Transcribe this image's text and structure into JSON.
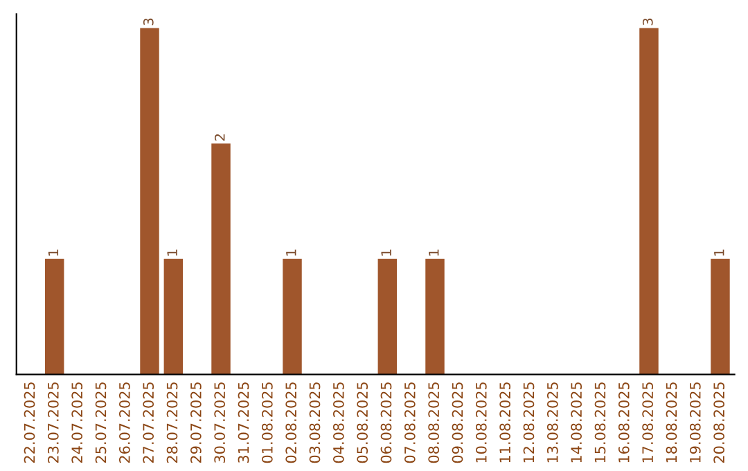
{
  "chart_data": {
    "type": "bar",
    "categories": [
      "22.07.2025",
      "23.07.2025",
      "24.07.2025",
      "25.07.2025",
      "26.07.2025",
      "27.07.2025",
      "28.07.2025",
      "29.07.2025",
      "30.07.2025",
      "31.07.2025",
      "01.08.2025",
      "02.08.2025",
      "03.08.2025",
      "04.08.2025",
      "05.08.2025",
      "06.08.2025",
      "07.08.2025",
      "08.08.2025",
      "09.08.2025",
      "10.08.2025",
      "11.08.2025",
      "12.08.2025",
      "13.08.2025",
      "14.08.2025",
      "15.08.2025",
      "16.08.2025",
      "17.08.2025",
      "18.08.2025",
      "19.08.2025",
      "20.08.2025"
    ],
    "series": [
      {
        "color": "#a0562c",
        "values": [
          0,
          1,
          0,
          0,
          0,
          3,
          1,
          0,
          2,
          0,
          0,
          1,
          0,
          0,
          0,
          1,
          0,
          1,
          0,
          0,
          0,
          0,
          0,
          0,
          0,
          0,
          3,
          0,
          0,
          1
        ],
        "value_labels": [
          null,
          "1",
          null,
          null,
          null,
          "3",
          "1",
          null,
          "2",
          null,
          null,
          "1",
          null,
          null,
          null,
          "1",
          null,
          "1",
          null,
          null,
          null,
          null,
          null,
          null,
          null,
          null,
          "3",
          null,
          null,
          "1"
        ]
      }
    ],
    "tick_labels": "x",
    "grid": false
  }
}
